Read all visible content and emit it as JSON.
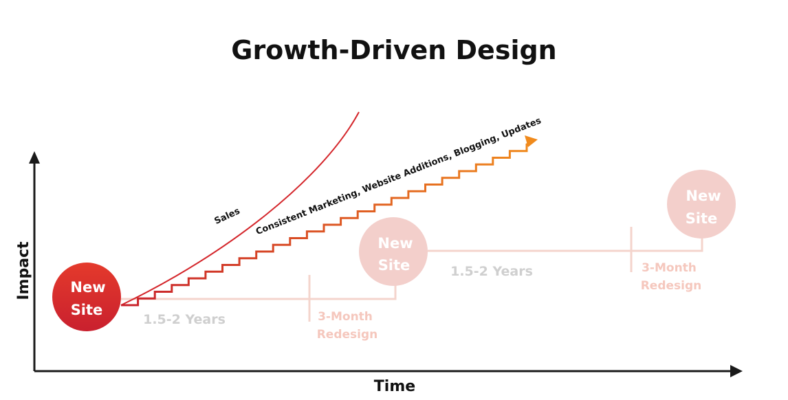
{
  "title": "Growth-Driven Design",
  "axes": {
    "y_label": "Impact",
    "x_label": "Time"
  },
  "colors": {
    "axis": "#1a1a1a",
    "sales_curve": "#d4262b",
    "stair_start": "#c8202b",
    "stair_end": "#f08a1c",
    "new_site_circle_start": "#e43a2c",
    "new_site_circle_end": "#c9202e",
    "faded_circle": "#f3cfcb",
    "faded_line": "#f4d4cc",
    "faded_text": "#cfcfcf",
    "faded_redesign_text": "#f5c7bd"
  },
  "bubbles": [
    {
      "label_line1": "New",
      "label_line2": "Site",
      "style": "solid"
    },
    {
      "label_line1": "New",
      "label_line2": "Site",
      "style": "faded"
    },
    {
      "label_line1": "New",
      "label_line2": "Site",
      "style": "faded"
    }
  ],
  "spans": [
    {
      "label": "1.5-2 Years"
    },
    {
      "label": "1.5-2 Years"
    }
  ],
  "redesigns": [
    {
      "line1": "3-Month",
      "line2": "Redesign"
    },
    {
      "line1": "3-Month",
      "line2": "Redesign"
    }
  ],
  "curves": {
    "sales_label": "Sales",
    "stair_label": "Consistent Marketing, Website Additions, Blogging, Updates"
  }
}
